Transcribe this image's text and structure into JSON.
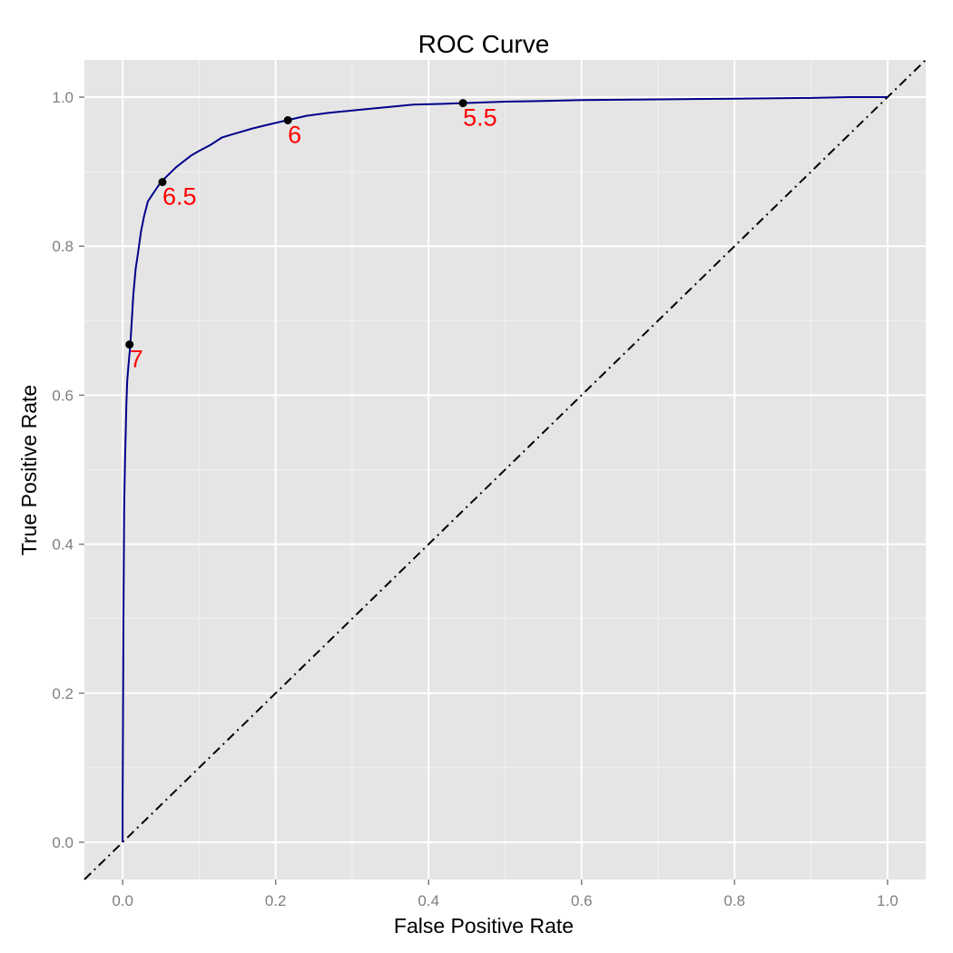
{
  "chart_data": {
    "type": "line",
    "title": "ROC Curve",
    "xlabel": "False Positive Rate",
    "ylabel": "True Positive Rate",
    "xlim": [
      -0.05,
      1.05
    ],
    "ylim": [
      -0.05,
      1.05
    ],
    "x_ticks": [
      "0.0",
      "0.2",
      "0.4",
      "0.6",
      "0.8",
      "1.0"
    ],
    "y_ticks": [
      "0.0",
      "0.2",
      "0.4",
      "0.6",
      "0.8",
      "1.0"
    ],
    "grid": true,
    "legend": "none",
    "series": [
      {
        "color": "#00008b",
        "x": [
          0.0,
          0.0,
          0.001,
          0.002,
          0.003,
          0.004,
          0.005,
          0.006,
          0.008,
          0.01,
          0.012,
          0.014,
          0.017,
          0.02,
          0.024,
          0.028,
          0.033,
          0.038,
          0.044,
          0.05,
          0.06,
          0.07,
          0.08,
          0.09,
          0.1,
          0.115,
          0.13,
          0.15,
          0.17,
          0.19,
          0.215,
          0.24,
          0.27,
          0.3,
          0.34,
          0.38,
          0.42,
          0.445,
          0.5,
          0.55,
          0.6,
          0.7,
          0.8,
          0.9,
          0.95,
          1.0
        ],
        "y": [
          0.0,
          0.05,
          0.3,
          0.45,
          0.51,
          0.55,
          0.59,
          0.62,
          0.645,
          0.668,
          0.7,
          0.735,
          0.77,
          0.79,
          0.82,
          0.84,
          0.86,
          0.868,
          0.877,
          0.886,
          0.896,
          0.906,
          0.914,
          0.922,
          0.928,
          0.936,
          0.946,
          0.952,
          0.958,
          0.963,
          0.969,
          0.975,
          0.979,
          0.982,
          0.986,
          0.99,
          0.991,
          0.992,
          0.994,
          0.995,
          0.996,
          0.997,
          0.998,
          0.999,
          1.0,
          1.0
        ]
      }
    ],
    "reference_line": {
      "x": [
        -0.05,
        1.05
      ],
      "y": [
        -0.05,
        1.05
      ],
      "color": "#000000",
      "style": "dotdash"
    },
    "threshold_points": [
      {
        "x": 0.009,
        "y": 0.668,
        "label": "7"
      },
      {
        "x": 0.052,
        "y": 0.886,
        "label": "6.5"
      },
      {
        "x": 0.216,
        "y": 0.969,
        "label": "6"
      },
      {
        "x": 0.445,
        "y": 0.992,
        "label": "5.5"
      }
    ],
    "colors": {
      "panel_background": "#e5e5e5",
      "grid_major": "#ffffff",
      "grid_minor": "#f2f2f2",
      "point": "#000000",
      "point_label": "#ff0000"
    }
  }
}
